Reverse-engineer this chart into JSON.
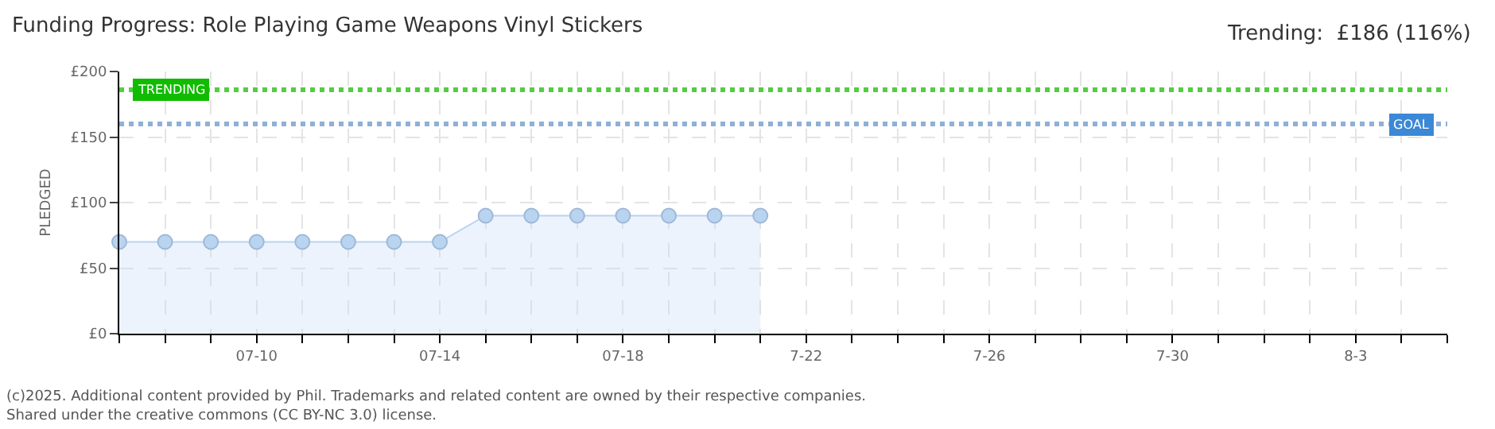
{
  "chart_data": {
    "type": "area",
    "title": "Funding Progress: Role Playing Game Weapons Vinyl Stickers",
    "subtitle": "Trending:  £186 (116%)",
    "ylabel": "PLEDGED",
    "x": [
      "--07-07",
      "--07-08",
      "--07-09",
      "--07-10",
      "--07-11",
      "--07-12",
      "--07-13",
      "--07-14",
      "--07-15",
      "--07-16",
      "--07-17",
      "--07-18",
      "--07-19",
      "--07-20",
      "--07-21"
    ],
    "series": [
      {
        "color": "#b8d4f0",
        "values": [
          70,
          70,
          70,
          70,
          70,
          70,
          70,
          70,
          90,
          90,
          90,
          90,
          90,
          90,
          90
        ]
      }
    ],
    "xlim": [
      "--07-07",
      "--08-05"
    ],
    "xticks": [
      {
        "value": "--07-07",
        "label": null
      },
      {
        "value": "--07-08",
        "label": null
      },
      {
        "value": "--07-09",
        "label": null
      },
      {
        "value": "--07-10",
        "label": "07-10"
      },
      {
        "value": "--07-11",
        "label": null
      },
      {
        "value": "--07-12",
        "label": null
      },
      {
        "value": "--07-13",
        "label": null
      },
      {
        "value": "--07-14",
        "label": "07-14"
      },
      {
        "value": "--07-15",
        "label": null
      },
      {
        "value": "--07-16",
        "label": null
      },
      {
        "value": "--07-17",
        "label": null
      },
      {
        "value": "--07-18",
        "label": "07-18"
      },
      {
        "value": "--07-19",
        "label": null
      },
      {
        "value": "--07-20",
        "label": null
      },
      {
        "value": "--07-21",
        "label": null
      },
      {
        "value": "--07-22",
        "label": "7-22"
      },
      {
        "value": "--07-23",
        "label": null
      },
      {
        "value": "--07-24",
        "label": null
      },
      {
        "value": "--07-25",
        "label": null
      },
      {
        "value": "--07-26",
        "label": "7-26"
      },
      {
        "value": "--07-27",
        "label": null
      },
      {
        "value": "--07-28",
        "label": null
      },
      {
        "value": "--07-29",
        "label": null
      },
      {
        "value": "--07-30",
        "label": "7-30"
      },
      {
        "value": "--07-31",
        "label": null
      },
      {
        "value": "--08-01",
        "label": null
      },
      {
        "value": "--08-02",
        "label": null
      },
      {
        "value": "--08-03",
        "label": "8-3"
      },
      {
        "value": "--08-04",
        "label": null
      },
      {
        "value": "--08-05",
        "label": null
      }
    ],
    "ylim": [
      0,
      200
    ],
    "yticks": [
      {
        "value": 0,
        "label": "£0"
      },
      {
        "value": 50,
        "label": "£50"
      },
      {
        "value": 100,
        "label": "£100"
      },
      {
        "value": 150,
        "label": "£150"
      },
      {
        "value": 200,
        "label": "£200"
      }
    ],
    "ref_lines": [
      {
        "axis": "y",
        "value": 186,
        "label": "TRENDING",
        "color": "#55cc44",
        "line_style": "dotted"
      },
      {
        "axis": "y",
        "value": 160,
        "label": "GOAL",
        "color": "#8fb0d8",
        "line_style": "dotted"
      }
    ],
    "grid": true,
    "marker": "circle",
    "annotations": [
      "(c)2025. Additional content provided by Phil. Trademarks and related content are owned by their respective companies.",
      "Shared under the creative commons (CC BY-NC 3.0) license."
    ]
  }
}
